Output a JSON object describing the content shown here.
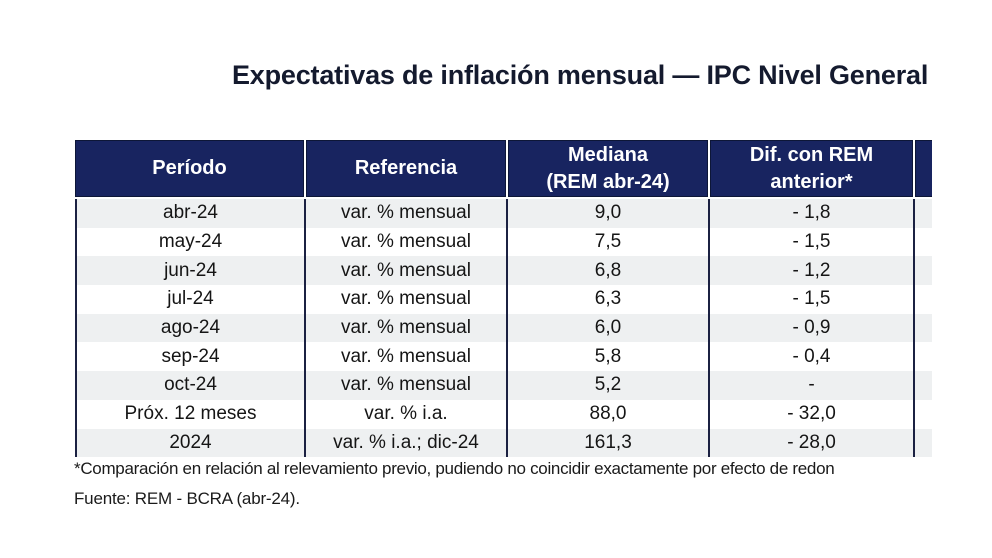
{
  "title": "Expectativas de inflación mensual — IPC Nivel General",
  "table": {
    "headers": [
      {
        "line1": "Período",
        "line2": ""
      },
      {
        "line1": "Referencia",
        "line2": ""
      },
      {
        "line1": "Mediana",
        "line2": "(REM abr-24)"
      },
      {
        "line1": "Dif. con REM",
        "line2": "anterior*"
      },
      {
        "line1": "",
        "line2": ""
      }
    ],
    "rows": [
      {
        "periodo": "abr-24",
        "referencia": "var. % mensual",
        "mediana": "9,0",
        "dif": "- 1,8"
      },
      {
        "periodo": "may-24",
        "referencia": "var. % mensual",
        "mediana": "7,5",
        "dif": "- 1,5"
      },
      {
        "periodo": "jun-24",
        "referencia": "var. % mensual",
        "mediana": "6,8",
        "dif": "- 1,2"
      },
      {
        "periodo": "jul-24",
        "referencia": "var. % mensual",
        "mediana": "6,3",
        "dif": "- 1,5"
      },
      {
        "periodo": "ago-24",
        "referencia": "var. % mensual",
        "mediana": "6,0",
        "dif": "- 0,9"
      },
      {
        "periodo": "sep-24",
        "referencia": "var. % mensual",
        "mediana": "5,8",
        "dif": "- 0,4"
      },
      {
        "periodo": "oct-24",
        "referencia": "var. % mensual",
        "mediana": "5,2",
        "dif": "-"
      },
      {
        "periodo": "Próx. 12 meses",
        "referencia": "var. % i.a.",
        "mediana": "88,0",
        "dif": "- 32,0"
      },
      {
        "periodo": "2024",
        "referencia": "var. % i.a.; dic-24",
        "mediana": "161,3",
        "dif": "- 28,0"
      }
    ]
  },
  "notes": {
    "comparison": "*Comparación en relación al relevamiento previo, pudiendo no coincidir exactamente por efecto de redon",
    "source": "Fuente: REM - BCRA (abr-24)."
  },
  "colors": {
    "header_background": "#182460",
    "row_stripe": "#eef0f1",
    "column_line": "#1b2142",
    "title_text": "#141a2e"
  }
}
